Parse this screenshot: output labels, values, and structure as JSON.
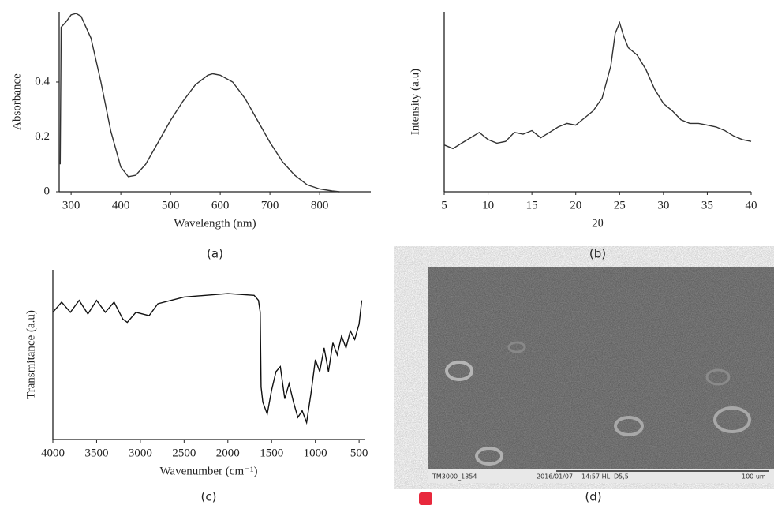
{
  "chart_data": [
    {
      "type": "line",
      "caption": "(a)",
      "xlabel": "Wavelength (nm)",
      "ylabel": "Absorbance",
      "x": [
        278,
        280,
        290,
        300,
        310,
        320,
        340,
        360,
        380,
        400,
        415,
        430,
        450,
        475,
        500,
        525,
        550,
        575,
        585,
        600,
        625,
        650,
        675,
        700,
        725,
        750,
        775,
        800,
        825,
        840
      ],
      "values": [
        0.1,
        0.6,
        0.62,
        0.645,
        0.65,
        0.64,
        0.56,
        0.4,
        0.22,
        0.09,
        0.055,
        0.06,
        0.1,
        0.18,
        0.26,
        0.33,
        0.39,
        0.425,
        0.43,
        0.425,
        0.4,
        0.34,
        0.26,
        0.18,
        0.11,
        0.06,
        0.025,
        0.01,
        0.003,
        0
      ],
      "color": "#333333",
      "xlim": [
        276,
        903
      ],
      "ylim": [
        0,
        0.656
      ],
      "xticks": [
        300,
        400,
        500,
        600,
        700,
        800
      ],
      "yticks": [
        0,
        0.2,
        0.4
      ]
    },
    {
      "type": "line",
      "caption": "(b)",
      "xlabel": "2θ",
      "ylabel": "Intensity (a.u)",
      "x": [
        5,
        6,
        7,
        8,
        9,
        10,
        11,
        12,
        13,
        14,
        15,
        16,
        17,
        18,
        19,
        20,
        21,
        22,
        23,
        24,
        24.5,
        25,
        25.5,
        26,
        27,
        28,
        29,
        30,
        31,
        32,
        33,
        34,
        35,
        36,
        37,
        38,
        39,
        40
      ],
      "values": [
        26,
        24,
        27,
        30,
        33,
        29,
        27,
        28,
        33,
        32,
        34,
        30,
        33,
        36,
        38,
        37,
        41,
        45,
        52,
        70,
        88,
        94,
        86,
        80,
        76,
        68,
        57,
        49,
        45,
        40,
        38,
        38,
        37,
        36,
        34,
        31,
        29,
        28
      ],
      "color": "#333333",
      "xlim": [
        5,
        40
      ],
      "ylim": [
        0,
        100
      ],
      "xticks": [
        5,
        10,
        15,
        20,
        25,
        30,
        35,
        40
      ]
    },
    {
      "type": "line",
      "caption": "(c)",
      "xlabel": "Wavenumber (cm⁻¹)",
      "ylabel": "Transmitance (a.u)",
      "x": [
        4000,
        3900,
        3800,
        3700,
        3600,
        3500,
        3400,
        3300,
        3200,
        3150,
        3050,
        2900,
        2800,
        2500,
        2000,
        1700,
        1650,
        1630,
        1620,
        1600,
        1550,
        1500,
        1450,
        1400,
        1350,
        1300,
        1250,
        1200,
        1150,
        1100,
        1050,
        1000,
        950,
        900,
        850,
        800,
        750,
        700,
        650,
        600,
        550,
        500,
        470
      ],
      "values": [
        75,
        81,
        75,
        82,
        74,
        82,
        75,
        81,
        71,
        69,
        75,
        73,
        80,
        84,
        86,
        85,
        82,
        75,
        31,
        22,
        15,
        29,
        40,
        43,
        24,
        33,
        22,
        13,
        17,
        10,
        27,
        47,
        40,
        54,
        40,
        57,
        50,
        61,
        54,
        64,
        59,
        68,
        82
      ],
      "color": "#111111",
      "xlim": [
        4000,
        438
      ],
      "ylim": [
        0,
        100
      ],
      "xticks": [
        4000,
        3500,
        3000,
        2500,
        2000,
        1500,
        1000,
        500
      ]
    }
  ],
  "image": {
    "caption": "(d)",
    "footer": [
      "TM3000_1354",
      "2016/01/07",
      "14:57 HL",
      "D5,5",
      "100 um"
    ]
  }
}
